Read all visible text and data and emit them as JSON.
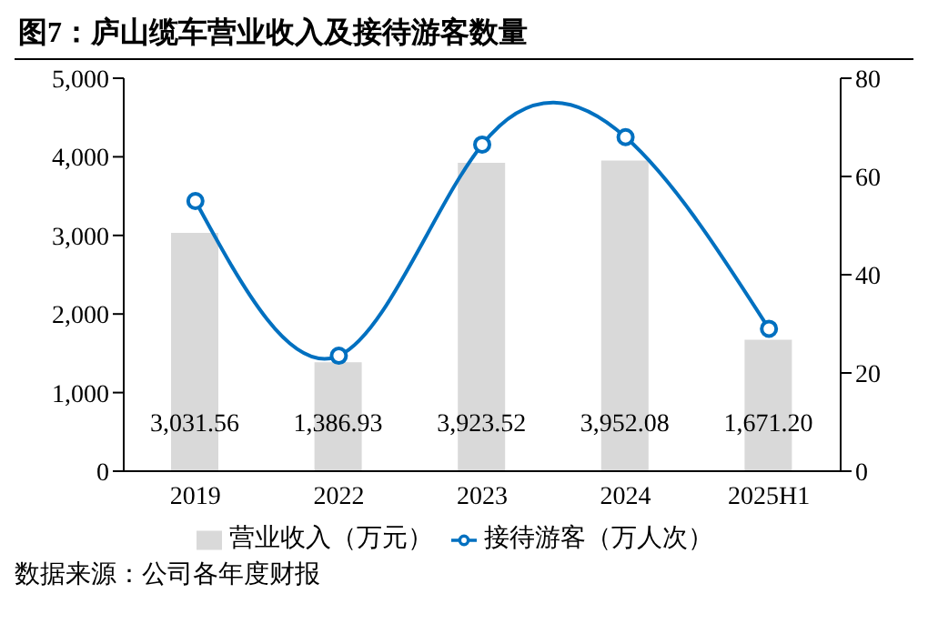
{
  "chart_data": {
    "type": "bar",
    "title": "图7：庐山缆车营业收入及接待游客数量",
    "categories": [
      "2019",
      "2022",
      "2023",
      "2024",
      "2025H1"
    ],
    "series": [
      {
        "name": "营业收入（万元）",
        "color": "#d9d9d9",
        "values": [
          3031.56,
          1386.93,
          3923.52,
          3952.08,
          1671.2
        ],
        "value_labels": [
          "3,031.56",
          "1,386.93",
          "3,923.52",
          "3,952.08",
          "1,671.20"
        ]
      },
      {
        "name": "接待游客（万人次）",
        "type": "line",
        "axis": "y2",
        "color": "#0070c0",
        "values": [
          55,
          23.5,
          66.5,
          68,
          29
        ],
        "marker": "circle"
      }
    ],
    "ylim": [
      0,
      5000
    ],
    "yticks": [
      {
        "value": 0,
        "label": "0"
      },
      {
        "value": 1000,
        "label": "1,000"
      },
      {
        "value": 2000,
        "label": "2,000"
      },
      {
        "value": 3000,
        "label": "3,000"
      },
      {
        "value": 4000,
        "label": "4,000"
      },
      {
        "value": 5000,
        "label": "5,000"
      }
    ],
    "y2lim": [
      0,
      80
    ],
    "y2ticks": [
      0,
      20,
      40,
      60,
      80
    ],
    "legend": "bottom",
    "grid": false,
    "annotations": [
      "数据来源：公司各年度财报"
    ]
  }
}
